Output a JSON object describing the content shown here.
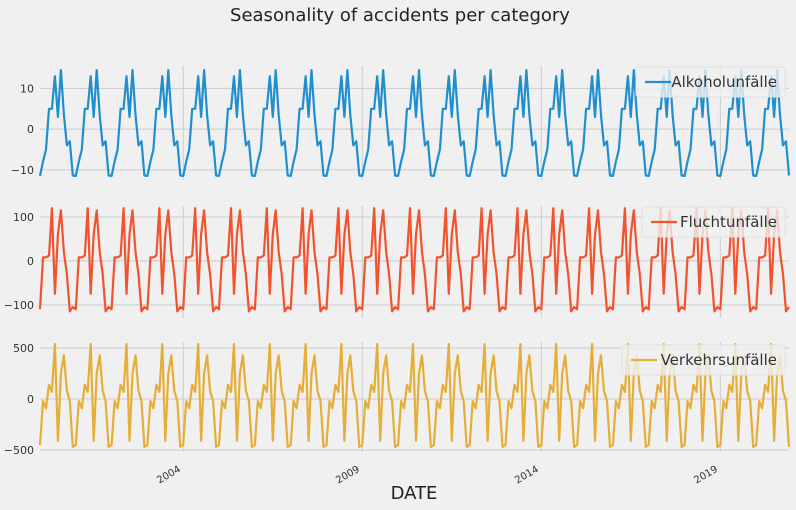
{
  "figure": {
    "title": "Seasonality of accidents per category",
    "xlabel": "DATE",
    "background": "#f0f0f0"
  },
  "chart_data": {
    "type": "line",
    "x_range": [
      "2000-01",
      "2020-12"
    ],
    "x_frequency": "monthly",
    "x_ticks": [
      "2004",
      "2009",
      "2014",
      "2019"
    ],
    "grid": true,
    "shared_x": true,
    "subplots": [
      {
        "name": "Alkoholunfälle",
        "color": "#1f8fcf",
        "ylim": [
          -12.5,
          15.5
        ],
        "yticks": [
          10,
          0,
          -10
        ],
        "legend_location": "upper right",
        "pattern": [
          -11.5,
          -8,
          -5,
          5,
          5,
          13,
          3,
          14.5,
          3.5,
          -4,
          -3,
          -11.4
        ]
      },
      {
        "name": "Fluchtunfälle",
        "color": "#f0532d",
        "ylim": [
          -130,
          125
        ],
        "yticks": [
          100,
          0,
          -100
        ],
        "legend_location": "upper right",
        "pattern": [
          -110,
          8,
          8,
          12,
          120,
          -75,
          60,
          115,
          20,
          -30,
          -115,
          -105
        ]
      },
      {
        "name": "Verkehrsunfälle",
        "color": "#e5ae38",
        "ylim": [
          -520,
          560
        ],
        "yticks": [
          500,
          0,
          -500
        ],
        "legend_location": "upper right",
        "pattern": [
          -450,
          -20,
          -90,
          140,
          70,
          540,
          -410,
          250,
          430,
          80,
          -20,
          -470
        ]
      }
    ]
  }
}
